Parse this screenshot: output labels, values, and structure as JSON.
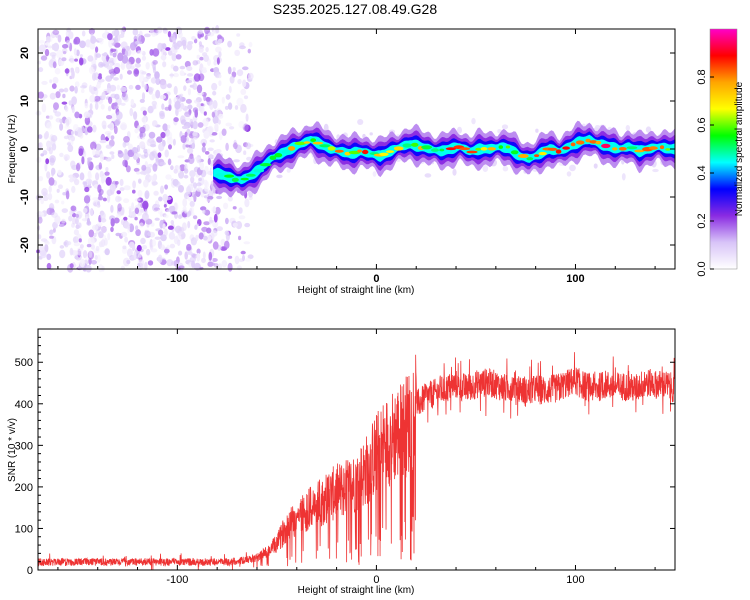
{
  "title": "S235.2025.127.08.49.G28",
  "chart_data": [
    {
      "type": "heatmap",
      "xlabel": "Height of straight line (km)",
      "ylabel": "Frequency (Hz)",
      "xlim": [
        -170,
        150
      ],
      "ylim": [
        -25,
        25
      ],
      "xticks": [
        -100,
        0,
        100
      ],
      "yticks": [
        -20,
        -10,
        0,
        10,
        20
      ],
      "colorbar": {
        "label": "Normalized spectral amplitude",
        "range": [
          0,
          1
        ],
        "ticks": [
          0.0,
          0.2,
          0.4,
          0.6,
          0.8
        ],
        "tick_labels": [
          "0.0",
          "0.2",
          "0.4",
          "0.6",
          "0.8"
        ],
        "colormap": [
          "#ffffff",
          "#d8c4f8",
          "#8a2be2",
          "#0000ff",
          "#00ffff",
          "#00ff00",
          "#ffff00",
          "#ffa500",
          "#ff0000",
          "#ff00c8"
        ]
      },
      "noise_region_x": [
        -170,
        -63
      ],
      "ridge": {
        "x": [
          -80,
          -73,
          -68,
          -63,
          -58,
          -53,
          -48,
          -43,
          -38,
          -33,
          -28,
          -23,
          -18,
          -13,
          -8,
          -3,
          2,
          7,
          12,
          17,
          22,
          27,
          32,
          37,
          42,
          47,
          52,
          57,
          62,
          67,
          72,
          77,
          82,
          87,
          92,
          97,
          102,
          107,
          112,
          117,
          122,
          127,
          132,
          137,
          142,
          147
        ],
        "frequency_hz": [
          -5,
          -6,
          -6.5,
          -5.5,
          -4,
          -2,
          -1,
          0,
          1,
          2,
          1,
          0,
          -0.5,
          -1,
          -0.5,
          -1,
          -1.5,
          -0.5,
          0.5,
          1,
          0.5,
          0,
          -0.5,
          0,
          0.5,
          -0.5,
          0,
          0,
          0.5,
          0,
          -1.5,
          -2,
          -1,
          0,
          -0.5,
          0.5,
          1.5,
          2,
          1,
          0.5,
          0,
          0.5,
          -0.5,
          0,
          0.5,
          0
        ]
      }
    },
    {
      "type": "line",
      "xlabel": "Height of straight line (km)",
      "ylabel": "SNR (10 * v/v)",
      "xlim": [
        -170,
        150
      ],
      "ylim": [
        0,
        580
      ],
      "xticks": [
        -100,
        0,
        100
      ],
      "yticks": [
        0,
        100,
        200,
        300,
        400,
        500
      ],
      "color": "#ee3333",
      "series": [
        {
          "x": [
            -170,
            -150,
            -130,
            -110,
            -90,
            -75,
            -65,
            -60,
            -55,
            -50,
            -45,
            -40,
            -35,
            -30,
            -25,
            -20,
            -15,
            -10,
            -5,
            0,
            5,
            10,
            15,
            20,
            25,
            30,
            35,
            40,
            45,
            50,
            55,
            60,
            65,
            70,
            75,
            80,
            85,
            90,
            95,
            100,
            105,
            110,
            115,
            120,
            125,
            130,
            135,
            140,
            145,
            150
          ],
          "values": [
            20,
            20,
            20,
            20,
            20,
            20,
            25,
            30,
            45,
            65,
            110,
            130,
            150,
            160,
            180,
            195,
            205,
            220,
            250,
            290,
            320,
            340,
            360,
            400,
            420,
            430,
            440,
            450,
            440,
            450,
            455,
            450,
            440,
            450,
            430,
            440,
            435,
            440,
            450,
            460,
            445,
            440,
            450,
            445,
            445,
            440,
            455,
            450,
            450,
            440
          ]
        }
      ]
    }
  ]
}
